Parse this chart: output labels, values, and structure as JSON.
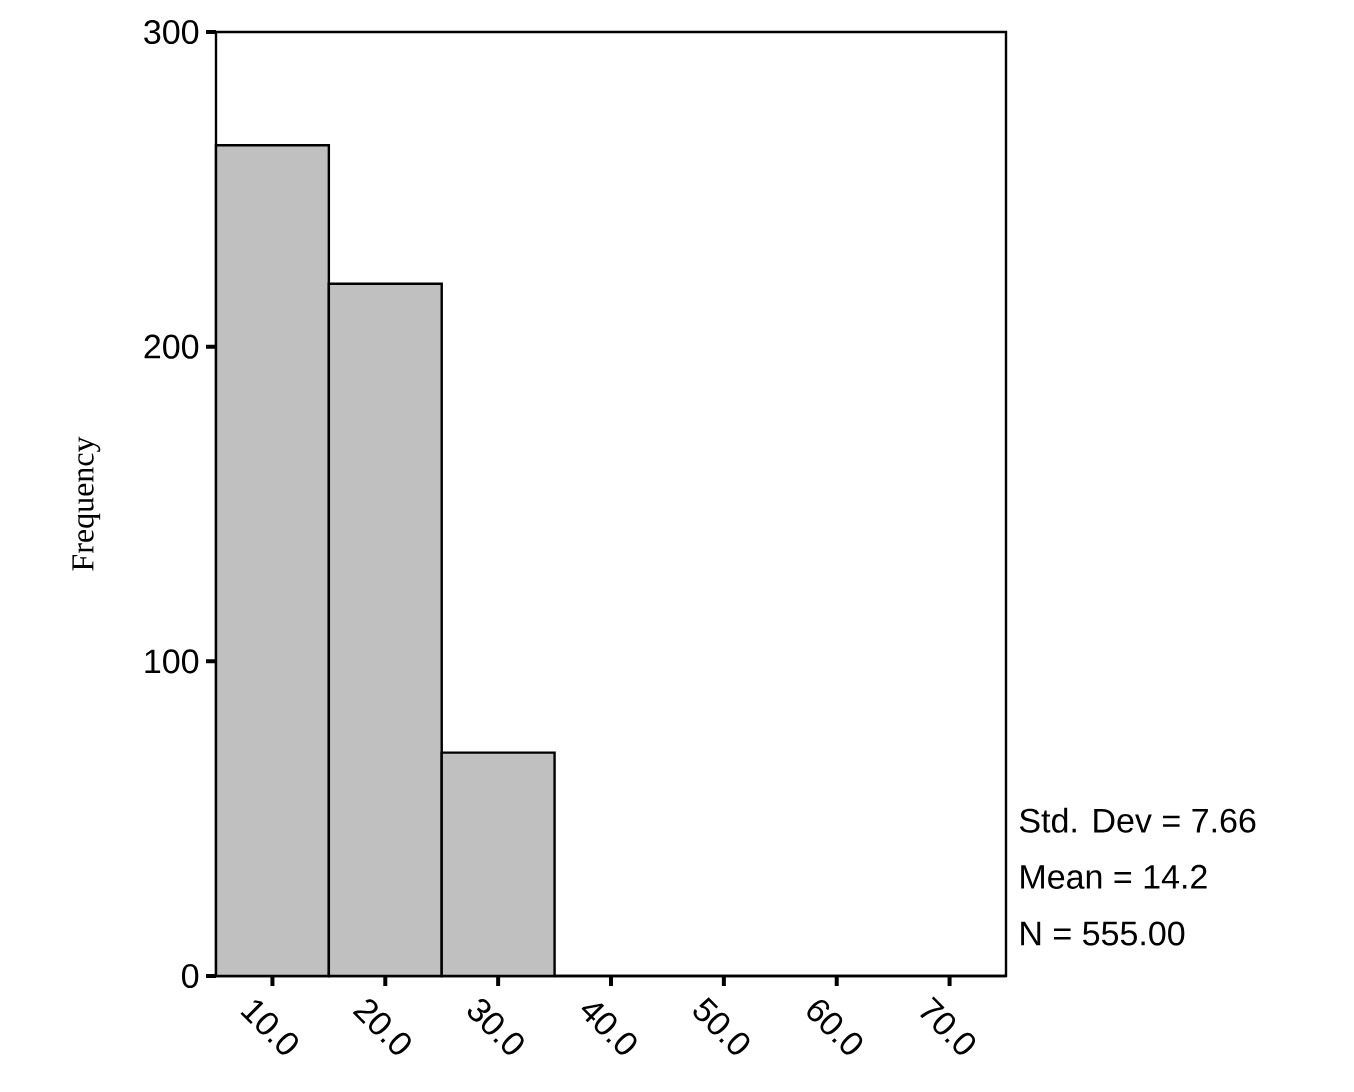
{
  "chart_data": {
    "type": "histogram",
    "ylabel": "Frequency",
    "bins": [
      5,
      15,
      25,
      35,
      45,
      55,
      65,
      75
    ],
    "values": [
      264,
      220,
      71,
      0,
      0,
      0,
      0
    ],
    "color": "#c0c0c0",
    "xlim": [
      5,
      75
    ],
    "ylim": [
      0,
      300
    ],
    "xticks": [
      {
        "value": 10,
        "label": "10.0"
      },
      {
        "value": 20,
        "label": "20.0"
      },
      {
        "value": 30,
        "label": "30.0"
      },
      {
        "value": 40,
        "label": "40.0"
      },
      {
        "value": 50,
        "label": "50.0"
      },
      {
        "value": 60,
        "label": "60.0"
      },
      {
        "value": 70,
        "label": "70.0"
      }
    ],
    "yticks": [
      0,
      100,
      200,
      300
    ],
    "annotations": [
      "Std. Dev = 7.66",
      "Mean = 14.2",
      "N = 555.00"
    ]
  }
}
